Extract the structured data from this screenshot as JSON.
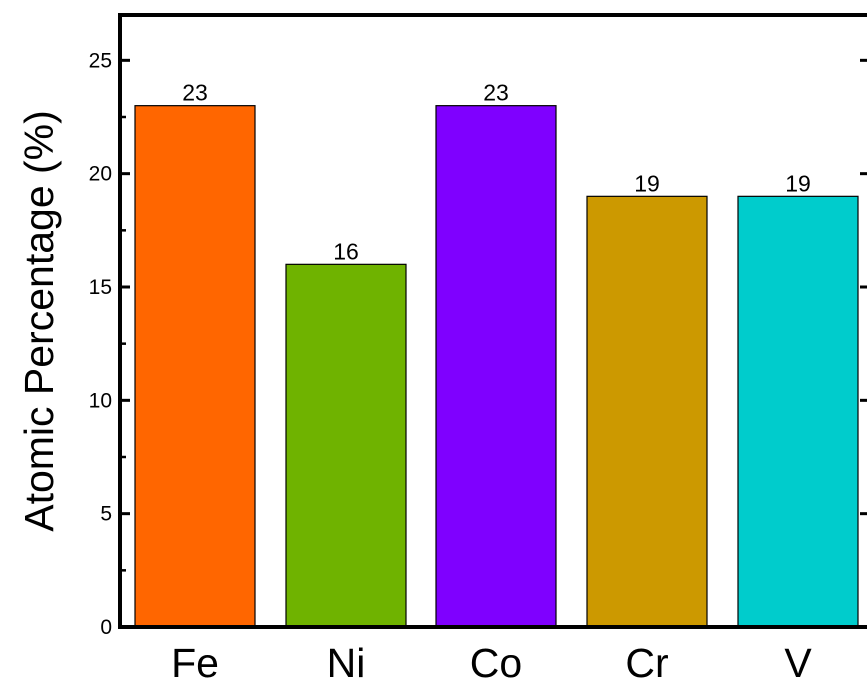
{
  "chart_data": {
    "type": "bar",
    "categories": [
      "Fe",
      "Ni",
      "Co",
      "Cr",
      "V"
    ],
    "values": [
      23,
      16,
      23,
      19,
      19
    ],
    "data_labels": [
      "23",
      "16",
      "23",
      "19",
      "19"
    ],
    "colors": [
      "#ff6600",
      "#6fb300",
      "#7f00ff",
      "#cc9900",
      "#00cccc"
    ],
    "title": "",
    "xlabel": "",
    "ylabel": "Atomic Percentage (%)",
    "ylim": [
      0,
      27
    ],
    "yticks": [
      0,
      5,
      10,
      15,
      20,
      25
    ],
    "ytick_labels": [
      "0",
      "5",
      "10",
      "15",
      "20",
      "25"
    ],
    "grid": false,
    "legend": "none"
  }
}
